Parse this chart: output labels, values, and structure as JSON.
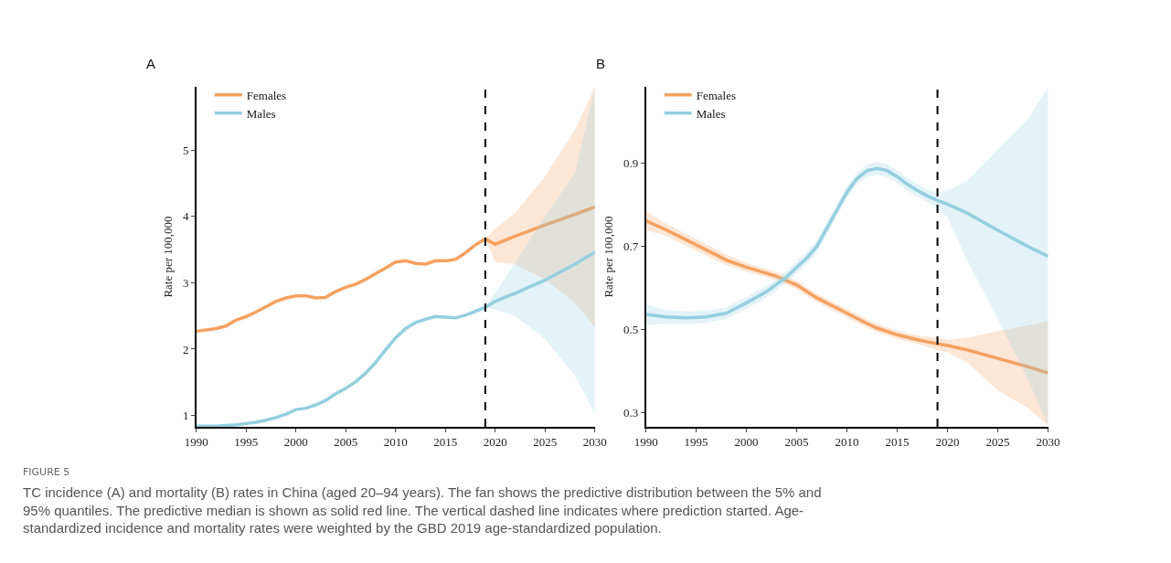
{
  "chart_data": [
    {
      "type": "line",
      "title": "A",
      "ylabel": "Rate per 100,000",
      "legend": "top left",
      "line_style": "solid",
      "marker": "none",
      "xlim": [
        1990,
        2030
      ],
      "xticks": [
        1990,
        1995,
        2000,
        2005,
        2010,
        2015,
        2020,
        2025,
        2030
      ],
      "ylim": [
        0.83,
        5.95
      ],
      "yticks": [
        1,
        2,
        3,
        4,
        5
      ],
      "ref_lines": [
        {
          "axis": "x",
          "value": 2019,
          "color": "#000000",
          "line_style": "dashed"
        }
      ],
      "series": [
        {
          "name": "Females",
          "color": "#f6a15f",
          "x": [
            1990,
            1991,
            1992,
            1993,
            1994,
            1995,
            1996,
            1997,
            1998,
            1999,
            2000,
            2001,
            2002,
            2003,
            2004,
            2005,
            2006,
            2007,
            2008,
            2009,
            2010,
            2011,
            2012,
            2013,
            2014,
            2015,
            2016,
            2017,
            2018,
            2019,
            2020,
            2022,
            2025,
            2028,
            2030
          ],
          "values": [
            2.27,
            2.29,
            2.31,
            2.35,
            2.44,
            2.49,
            2.56,
            2.64,
            2.72,
            2.77,
            2.8,
            2.8,
            2.77,
            2.78,
            2.87,
            2.93,
            2.98,
            3.05,
            3.14,
            3.22,
            3.31,
            3.33,
            3.29,
            3.28,
            3.33,
            3.33,
            3.35,
            3.45,
            3.57,
            3.66,
            3.58,
            3.7,
            3.87,
            4.03,
            4.14
          ],
          "lower": [
            null,
            null,
            null,
            null,
            null,
            null,
            null,
            null,
            null,
            null,
            null,
            null,
            null,
            null,
            null,
            null,
            null,
            null,
            null,
            null,
            null,
            null,
            null,
            null,
            null,
            null,
            null,
            null,
            null,
            3.66,
            3.31,
            3.28,
            3.05,
            2.7,
            2.33
          ],
          "upper": [
            null,
            null,
            null,
            null,
            null,
            null,
            null,
            null,
            null,
            null,
            null,
            null,
            null,
            null,
            null,
            null,
            null,
            null,
            null,
            null,
            null,
            null,
            null,
            null,
            null,
            null,
            null,
            null,
            null,
            3.66,
            3.81,
            4.05,
            4.6,
            5.3,
            5.95
          ]
        },
        {
          "name": "Males",
          "color": "#93cfdf",
          "x": [
            1990,
            1991,
            1992,
            1993,
            1994,
            1995,
            1996,
            1997,
            1998,
            1999,
            2000,
            2001,
            2002,
            2003,
            2004,
            2005,
            2006,
            2007,
            2008,
            2009,
            2010,
            2011,
            2012,
            2013,
            2014,
            2015,
            2016,
            2017,
            2018,
            2019,
            2020,
            2022,
            2025,
            2028,
            2030
          ],
          "values": [
            0.84,
            0.84,
            0.84,
            0.85,
            0.86,
            0.88,
            0.9,
            0.93,
            0.97,
            1.02,
            1.09,
            1.11,
            1.16,
            1.23,
            1.33,
            1.41,
            1.51,
            1.64,
            1.8,
            1.99,
            2.17,
            2.31,
            2.4,
            2.45,
            2.49,
            2.48,
            2.47,
            2.51,
            2.57,
            2.63,
            2.72,
            2.84,
            3.04,
            3.28,
            3.46
          ],
          "lower": [
            null,
            null,
            null,
            null,
            null,
            null,
            null,
            null,
            null,
            null,
            null,
            null,
            null,
            null,
            null,
            null,
            null,
            null,
            null,
            null,
            null,
            null,
            null,
            null,
            null,
            null,
            null,
            null,
            null,
            2.63,
            2.6,
            2.5,
            2.15,
            1.6,
            1.03
          ],
          "upper": [
            null,
            null,
            null,
            null,
            null,
            null,
            null,
            null,
            null,
            null,
            null,
            null,
            null,
            null,
            null,
            null,
            null,
            null,
            null,
            null,
            null,
            null,
            null,
            null,
            null,
            null,
            null,
            null,
            null,
            2.63,
            2.85,
            3.3,
            4.0,
            4.65,
            5.95
          ]
        }
      ],
      "annotations": [
        "FIGURE 5",
        "TC incidence (A) and mortality (B) rates in China (aged 20–94 years). The fan shows the predictive distribution between the 5% and 95% quantiles. The predictive median is shown as solid red line. The vertical dashed line indicates where prediction started. Age-standardized incidence and mortality rates were weighted by the GBD 2019 age-standardized population."
      ]
    },
    {
      "type": "line",
      "title": "B",
      "ylabel": "Rate per 100,000",
      "legend": "top left",
      "line_style": "solid",
      "marker": "none",
      "xlim": [
        1990,
        2030
      ],
      "xticks": [
        1990,
        1995,
        2000,
        2005,
        2010,
        2015,
        2020,
        2025,
        2030
      ],
      "ylim": [
        0.265,
        1.085
      ],
      "yticks": [
        0.3,
        0.5,
        0.7,
        0.9
      ],
      "ref_lines": [
        {
          "axis": "x",
          "value": 2019,
          "color": "#000000",
          "line_style": "dashed"
        }
      ],
      "series": [
        {
          "name": "Females",
          "color": "#f6a15f",
          "x": [
            1990,
            1992,
            1995,
            1998,
            2000,
            2003,
            2005,
            2007,
            2010,
            2012,
            2013,
            2015,
            2017,
            2019,
            2020,
            2022,
            2025,
            2028,
            2030
          ],
          "values": [
            0.762,
            0.74,
            0.704,
            0.667,
            0.65,
            0.628,
            0.607,
            0.576,
            0.539,
            0.514,
            0.503,
            0.487,
            0.475,
            0.465,
            0.461,
            0.45,
            0.43,
            0.41,
            0.395
          ],
          "lower": [
            0.74,
            0.725,
            0.69,
            0.655,
            0.64,
            0.618,
            0.597,
            0.566,
            0.529,
            0.504,
            0.493,
            0.477,
            0.465,
            0.45,
            0.445,
            0.42,
            0.353,
            0.31,
            0.269
          ],
          "upper": [
            0.785,
            0.755,
            0.718,
            0.68,
            0.66,
            0.638,
            0.617,
            0.586,
            0.549,
            0.524,
            0.513,
            0.497,
            0.485,
            0.48,
            0.475,
            0.48,
            0.496,
            0.51,
            0.519
          ]
        },
        {
          "name": "Males",
          "color": "#93cfdf",
          "x": [
            1990,
            1992,
            1994,
            1996,
            1998,
            2000,
            2002,
            2004,
            2006,
            2007,
            2008,
            2009,
            2010,
            2011,
            2012,
            2013,
            2014,
            2015,
            2016,
            2017,
            2018,
            2019,
            2020,
            2022,
            2025,
            2028,
            2030
          ],
          "values": [
            0.536,
            0.53,
            0.528,
            0.53,
            0.539,
            0.564,
            0.591,
            0.627,
            0.672,
            0.7,
            0.744,
            0.788,
            0.831,
            0.864,
            0.883,
            0.888,
            0.883,
            0.868,
            0.85,
            0.835,
            0.822,
            0.811,
            0.802,
            0.78,
            0.739,
            0.7,
            0.676
          ],
          "lower": [
            0.51,
            0.513,
            0.513,
            0.515,
            0.525,
            0.55,
            0.577,
            0.613,
            0.658,
            0.686,
            0.73,
            0.774,
            0.817,
            0.85,
            0.868,
            0.873,
            0.868,
            0.853,
            0.835,
            0.82,
            0.807,
            0.79,
            0.77,
            0.664,
            0.525,
            0.379,
            0.269
          ],
          "upper": [
            0.56,
            0.547,
            0.543,
            0.545,
            0.553,
            0.578,
            0.605,
            0.641,
            0.686,
            0.714,
            0.758,
            0.802,
            0.845,
            0.878,
            0.898,
            0.903,
            0.898,
            0.883,
            0.865,
            0.85,
            0.837,
            0.83,
            0.835,
            0.86,
            0.934,
            1.007,
            1.085
          ]
        }
      ]
    }
  ]
}
